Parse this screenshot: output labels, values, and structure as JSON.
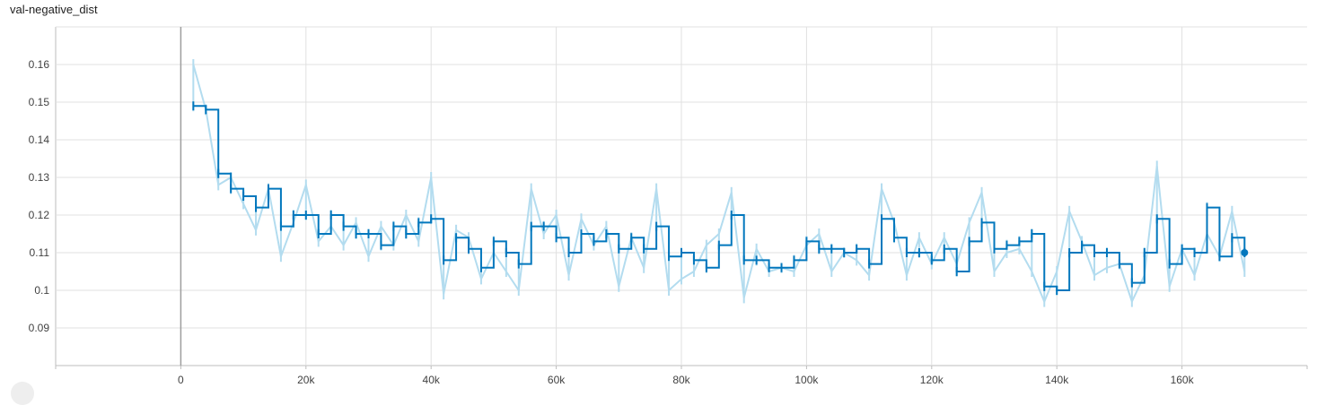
{
  "chart_title": "val-negative_dist",
  "chart_data": {
    "type": "line",
    "title": "val-negative_dist",
    "xlabel": "",
    "ylabel": "",
    "xlim": [
      -20000,
      180000
    ],
    "ylim": [
      0.08,
      0.17
    ],
    "grid": true,
    "x_ticks": [
      0,
      20000,
      40000,
      60000,
      80000,
      100000,
      120000,
      140000,
      160000
    ],
    "x_tick_labels": [
      "0",
      "20k",
      "40k",
      "60k",
      "80k",
      "100k",
      "120k",
      "140k",
      "160k"
    ],
    "y_ticks": [
      0.09,
      0.1,
      0.11,
      0.12,
      0.13,
      0.14,
      0.15,
      0.16
    ],
    "y_tick_labels": [
      "0.09",
      "0.1",
      "0.11",
      "0.12",
      "0.13",
      "0.14",
      "0.15",
      "0.16"
    ],
    "colors": {
      "smoothed": "#0277bd",
      "raw": "#b3dcef",
      "grid": "#e0e0e0"
    },
    "series": [
      {
        "role": "raw",
        "x": [
          2000,
          4000,
          6000,
          8000,
          10000,
          12000,
          14000,
          16000,
          18000,
          20000,
          22000,
          24000,
          26000,
          28000,
          30000,
          32000,
          34000,
          36000,
          38000,
          40000,
          42000,
          44000,
          46000,
          48000,
          50000,
          52000,
          54000,
          56000,
          58000,
          60000,
          62000,
          64000,
          66000,
          68000,
          70000,
          72000,
          74000,
          76000,
          78000,
          80000,
          82000,
          84000,
          86000,
          88000,
          90000,
          92000,
          94000,
          96000,
          98000,
          100000,
          102000,
          104000,
          106000,
          108000,
          110000,
          112000,
          114000,
          116000,
          118000,
          120000,
          122000,
          124000,
          126000,
          128000,
          130000,
          132000,
          134000,
          136000,
          138000,
          140000,
          142000,
          144000,
          146000,
          148000,
          150000,
          152000,
          154000,
          156000,
          158000,
          160000,
          162000,
          164000,
          166000,
          168000,
          170000
        ],
        "y": [
          0.16,
          0.148,
          0.128,
          0.13,
          0.123,
          0.116,
          0.127,
          0.109,
          0.118,
          0.128,
          0.113,
          0.117,
          0.112,
          0.118,
          0.109,
          0.117,
          0.112,
          0.12,
          0.113,
          0.13,
          0.099,
          0.116,
          0.114,
          0.103,
          0.11,
          0.105,
          0.1,
          0.127,
          0.115,
          0.12,
          0.104,
          0.119,
          0.112,
          0.117,
          0.101,
          0.114,
          0.106,
          0.127,
          0.1,
          0.103,
          0.105,
          0.112,
          0.115,
          0.126,
          0.098,
          0.111,
          0.105,
          0.106,
          0.105,
          0.112,
          0.115,
          0.105,
          0.11,
          0.108,
          0.104,
          0.127,
          0.118,
          0.104,
          0.114,
          0.107,
          0.114,
          0.107,
          0.118,
          0.126,
          0.105,
          0.11,
          0.111,
          0.105,
          0.097,
          0.105,
          0.121,
          0.113,
          0.104,
          0.106,
          0.107,
          0.097,
          0.104,
          0.133,
          0.101,
          0.111,
          0.104,
          0.115,
          0.109,
          0.121,
          0.105
        ]
      },
      {
        "role": "smoothed",
        "x": [
          2000,
          4000,
          6000,
          8000,
          10000,
          12000,
          14000,
          16000,
          18000,
          20000,
          22000,
          24000,
          26000,
          28000,
          30000,
          32000,
          34000,
          36000,
          38000,
          40000,
          42000,
          44000,
          46000,
          48000,
          50000,
          52000,
          54000,
          56000,
          58000,
          60000,
          62000,
          64000,
          66000,
          68000,
          70000,
          72000,
          74000,
          76000,
          78000,
          80000,
          82000,
          84000,
          86000,
          88000,
          90000,
          92000,
          94000,
          96000,
          98000,
          100000,
          102000,
          104000,
          106000,
          108000,
          110000,
          112000,
          114000,
          116000,
          118000,
          120000,
          122000,
          124000,
          126000,
          128000,
          130000,
          132000,
          134000,
          136000,
          138000,
          140000,
          142000,
          144000,
          146000,
          148000,
          150000,
          152000,
          154000,
          156000,
          158000,
          160000,
          162000,
          164000,
          166000,
          168000,
          170000
        ],
        "y": [
          0.149,
          0.148,
          0.131,
          0.127,
          0.125,
          0.122,
          0.127,
          0.117,
          0.12,
          0.12,
          0.115,
          0.12,
          0.117,
          0.115,
          0.115,
          0.112,
          0.117,
          0.115,
          0.118,
          0.119,
          0.108,
          0.114,
          0.111,
          0.106,
          0.113,
          0.11,
          0.107,
          0.117,
          0.117,
          0.114,
          0.11,
          0.115,
          0.113,
          0.115,
          0.111,
          0.114,
          0.111,
          0.117,
          0.109,
          0.11,
          0.108,
          0.106,
          0.112,
          0.12,
          0.108,
          0.108,
          0.106,
          0.106,
          0.108,
          0.113,
          0.111,
          0.111,
          0.11,
          0.111,
          0.107,
          0.119,
          0.114,
          0.11,
          0.11,
          0.108,
          0.111,
          0.105,
          0.113,
          0.118,
          0.111,
          0.112,
          0.113,
          0.115,
          0.101,
          0.1,
          0.11,
          0.112,
          0.11,
          0.11,
          0.107,
          0.102,
          0.11,
          0.119,
          0.107,
          0.111,
          0.11,
          0.122,
          0.109,
          0.114,
          0.11
        ]
      }
    ],
    "last_point": {
      "x": 170000,
      "y": 0.11
    }
  }
}
